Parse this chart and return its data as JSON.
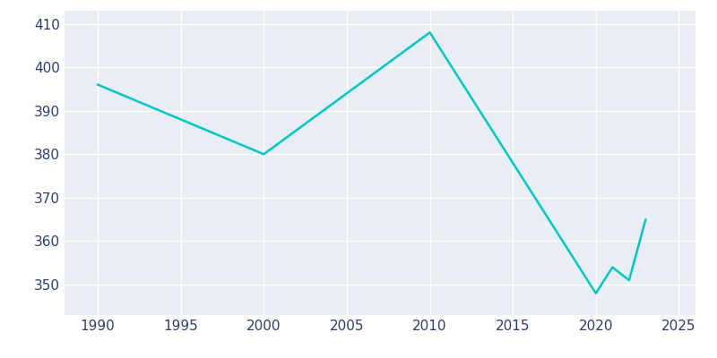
{
  "years": [
    1990,
    2000,
    2010,
    2020,
    2021,
    2022,
    2023
  ],
  "population": [
    396,
    380,
    408,
    348,
    354,
    351,
    365
  ],
  "line_color": "#00C5C5",
  "background_color": "#E8EEF4",
  "fig_background_color": "#FFFFFF",
  "grid_color": "#FFFFFF",
  "text_color": "#2C3E6B",
  "xlim": [
    1988,
    2026
  ],
  "ylim": [
    343,
    413
  ],
  "yticks": [
    350,
    360,
    370,
    380,
    390,
    400,
    410
  ],
  "xticks": [
    1990,
    1995,
    2000,
    2005,
    2010,
    2015,
    2020,
    2025
  ],
  "linewidth": 1.8,
  "tick_fontsize": 11,
  "fig_width": 8.0,
  "fig_height": 4.0
}
